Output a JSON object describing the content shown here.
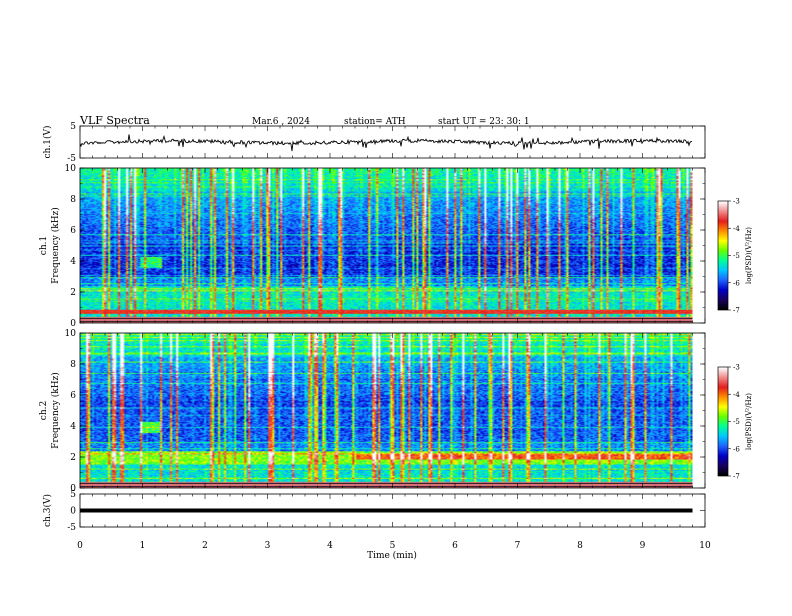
{
  "header": {
    "title": "VLF  Spectra",
    "date": "Mar.6  , 2024",
    "station": "station= ATH",
    "start_ut": "start  UT  =    23: 30: 1"
  },
  "chart_data": {
    "type": "heatmap",
    "x_axis": {
      "label": "Time  (min)",
      "range": [
        0,
        10
      ],
      "ticks": [
        "0",
        "1",
        "2",
        "3",
        "4",
        "5",
        "6",
        "7",
        "8",
        "9",
        "10"
      ]
    },
    "panels": [
      {
        "name": "ch.1(V)",
        "kind": "line",
        "ylabel": "ch.1(V)",
        "ylim": [
          -5,
          5
        ],
        "yticks": [
          "5",
          "-5"
        ],
        "trace_level_v": 0,
        "data_end_min": 9.8
      },
      {
        "name": "ch.1",
        "kind": "spectrogram",
        "ylabel": "Frequency  (kHz)",
        "panel_label": "ch.1",
        "ylim": [
          0,
          10
        ],
        "yticks": [
          "0",
          "2",
          "4",
          "6",
          "8",
          "10"
        ],
        "data_end_min": 9.8
      },
      {
        "name": "ch.2",
        "kind": "spectrogram",
        "ylabel": "Frequency  (kHz)",
        "panel_label": "ch.2",
        "ylim": [
          0,
          10
        ],
        "yticks": [
          "0",
          "2",
          "4",
          "6",
          "8",
          "10"
        ],
        "data_end_min": 9.8
      },
      {
        "name": "ch.3(V)",
        "kind": "line",
        "ylabel": "ch.3(V)",
        "ylim": [
          -5,
          5
        ],
        "yticks": [
          "5",
          "0",
          "-5"
        ],
        "trace_level_v": 0,
        "data_end_min": 9.8
      }
    ],
    "colorbars": [
      {
        "label": "log(PSD)(V²/Hz)",
        "range": [
          -7,
          -3
        ],
        "ticks": [
          "-3",
          "-4",
          "-5",
          "-6",
          "-7"
        ]
      },
      {
        "label": "log(PSD)(V²/Hz)",
        "range": [
          -7,
          -3
        ],
        "ticks": [
          "-3",
          "-4",
          "-5",
          "-6",
          "-7"
        ]
      }
    ],
    "colormap": [
      "#000000",
      "#1a005e",
      "#0000c8",
      "#1e64ff",
      "#00c8ff",
      "#00ff96",
      "#64ff00",
      "#ffff00",
      "#ff8c00",
      "#e61e1e",
      "#f08c8c",
      "#ffffff"
    ]
  }
}
